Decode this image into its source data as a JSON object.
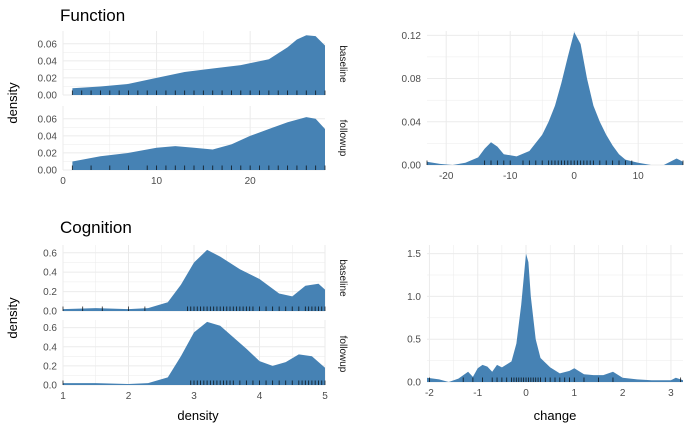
{
  "colors": {
    "fill": "#4682b4",
    "grid": "#ebebeb",
    "rug": "#000000"
  },
  "chart_data": [
    {
      "type": "area",
      "title": "Function",
      "xlabel": "",
      "ylabel": "density",
      "xlim": [
        0,
        28
      ],
      "xticks": [
        0,
        10,
        20
      ],
      "ylim": [
        0,
        0.075
      ],
      "yticks": [
        0.0,
        0.02,
        0.04,
        0.06
      ],
      "yticklabels": [
        "0.00",
        "0.02",
        "0.04",
        "0.06"
      ],
      "series": [
        {
          "name": "baseline",
          "x": [
            1,
            4,
            7,
            10,
            13,
            16,
            19,
            22,
            24,
            25,
            26,
            27,
            28
          ],
          "values": [
            0.008,
            0.01,
            0.013,
            0.02,
            0.027,
            0.031,
            0.035,
            0.042,
            0.056,
            0.065,
            0.07,
            0.069,
            0.058
          ],
          "rug": [
            1,
            2,
            3,
            4,
            5,
            6,
            7,
            8,
            9,
            10,
            11,
            12,
            13,
            14,
            15,
            16,
            17,
            18,
            19,
            20,
            21,
            22,
            23,
            24,
            25,
            26,
            27,
            28
          ]
        },
        {
          "name": "followup",
          "x": [
            1,
            4,
            7,
            10,
            12,
            14,
            16,
            18,
            20,
            22,
            24,
            26,
            27,
            28
          ],
          "values": [
            0.01,
            0.016,
            0.02,
            0.026,
            0.028,
            0.026,
            0.024,
            0.03,
            0.04,
            0.048,
            0.056,
            0.062,
            0.06,
            0.048
          ],
          "rug": [
            1,
            3,
            5,
            7,
            9,
            10,
            11,
            12,
            13,
            14,
            15,
            16,
            17,
            18,
            19,
            20,
            21,
            22,
            23,
            24,
            25,
            26,
            27,
            28
          ]
        }
      ]
    },
    {
      "type": "area",
      "title": "",
      "xlabel": "",
      "ylabel": "",
      "xlim": [
        -23,
        17
      ],
      "xticks": [
        -20,
        -10,
        0,
        10
      ],
      "ylim": [
        0,
        0.124
      ],
      "yticks": [
        0.0,
        0.04,
        0.08,
        0.12
      ],
      "yticklabels": [
        "0.00",
        "0.04",
        "0.08",
        "0.12"
      ],
      "series": [
        {
          "x": [
            -23,
            -21,
            -19,
            -17,
            -15,
            -14,
            -13,
            -12,
            -11,
            -9,
            -7,
            -5,
            -4,
            -3,
            -2,
            -1,
            0,
            1,
            2,
            3,
            4,
            5,
            6,
            7,
            8,
            10,
            12,
            14,
            15,
            16,
            17
          ],
          "values": [
            0.003,
            0.001,
            0.0,
            0.002,
            0.007,
            0.015,
            0.021,
            0.017,
            0.01,
            0.008,
            0.013,
            0.028,
            0.04,
            0.055,
            0.076,
            0.1,
            0.123,
            0.112,
            0.08,
            0.055,
            0.04,
            0.028,
            0.018,
            0.01,
            0.005,
            0.002,
            0.0,
            0.0,
            0.003,
            0.006,
            0.003
          ],
          "rug": [
            -23,
            -14,
            -13,
            -12,
            -11,
            -10,
            -8,
            -7,
            -6,
            -5,
            -4,
            -3.5,
            -3,
            -2.5,
            -2,
            -1.5,
            -1,
            -0.5,
            0,
            0.5,
            1,
            1.5,
            2,
            2.5,
            3,
            4,
            5,
            6,
            7,
            8,
            9,
            17
          ]
        }
      ]
    },
    {
      "type": "area",
      "title": "Cognition",
      "xlabel": "density",
      "ylabel": "density",
      "xlim": [
        1,
        5
      ],
      "xticks": [
        1,
        2,
        3,
        4,
        5
      ],
      "ylim": [
        0,
        0.68
      ],
      "yticks": [
        0.0,
        0.2,
        0.4,
        0.6
      ],
      "yticklabels": [
        "0.0",
        "0.2",
        "0.4",
        "0.6"
      ],
      "series": [
        {
          "name": "baseline",
          "x": [
            1,
            1.5,
            2,
            2.3,
            2.6,
            2.8,
            3.0,
            3.2,
            3.4,
            3.7,
            4.0,
            4.3,
            4.5,
            4.7,
            4.9,
            5.0
          ],
          "values": [
            0.02,
            0.03,
            0.02,
            0.03,
            0.09,
            0.27,
            0.5,
            0.63,
            0.56,
            0.43,
            0.33,
            0.18,
            0.15,
            0.26,
            0.28,
            0.22
          ],
          "rug": [
            1.0,
            1.3,
            1.6,
            2.0,
            2.25,
            2.9,
            2.95,
            3.0,
            3.05,
            3.1,
            3.15,
            3.2,
            3.25,
            3.3,
            3.35,
            3.4,
            3.45,
            3.5,
            3.55,
            3.6,
            3.65,
            3.7,
            3.75,
            3.8,
            3.85,
            3.9,
            4.0,
            4.1,
            4.2,
            4.3,
            4.4,
            4.5,
            4.6,
            4.7,
            4.75,
            4.8,
            4.85,
            4.9,
            4.95,
            5.0
          ]
        },
        {
          "name": "followup",
          "x": [
            1,
            1.5,
            2,
            2.3,
            2.6,
            2.8,
            3.0,
            3.2,
            3.4,
            3.6,
            3.8,
            4.0,
            4.2,
            4.4,
            4.6,
            4.8,
            5.0
          ],
          "values": [
            0.02,
            0.02,
            0.01,
            0.02,
            0.08,
            0.3,
            0.55,
            0.66,
            0.62,
            0.5,
            0.38,
            0.25,
            0.2,
            0.24,
            0.32,
            0.3,
            0.18
          ],
          "rug": [
            1.0,
            2.95,
            3.0,
            3.05,
            3.1,
            3.15,
            3.2,
            3.25,
            3.3,
            3.35,
            3.4,
            3.45,
            3.5,
            3.55,
            3.6,
            3.7,
            3.8,
            3.9,
            4.0,
            4.1,
            4.2,
            4.3,
            4.4,
            4.5,
            4.6,
            4.65,
            4.7,
            4.75,
            4.8,
            4.85,
            4.9,
            4.95,
            5.0
          ]
        }
      ]
    },
    {
      "type": "area",
      "title": "",
      "xlabel": "change",
      "ylabel": "",
      "xlim": [
        -2.05,
        3.25
      ],
      "xticks": [
        -2,
        -1,
        0,
        1,
        2,
        3
      ],
      "ylim": [
        0,
        1.6
      ],
      "yticks": [
        0.0,
        0.5,
        1.0,
        1.5
      ],
      "yticklabels": [
        "0.0",
        "0.5",
        "1.0",
        "1.5"
      ],
      "series": [
        {
          "x": [
            -2.05,
            -1.8,
            -1.6,
            -1.4,
            -1.2,
            -1.1,
            -1.0,
            -0.9,
            -0.8,
            -0.7,
            -0.6,
            -0.5,
            -0.3,
            -0.2,
            -0.1,
            0.0,
            0.05,
            0.1,
            0.2,
            0.3,
            0.5,
            0.7,
            0.9,
            1.0,
            1.2,
            1.4,
            1.6,
            1.8,
            2.0,
            2.3,
            2.6,
            3.0,
            3.1,
            3.2,
            3.25
          ],
          "values": [
            0.05,
            0.03,
            0.0,
            0.04,
            0.12,
            0.06,
            0.16,
            0.2,
            0.18,
            0.12,
            0.2,
            0.17,
            0.24,
            0.45,
            0.9,
            1.5,
            1.4,
            1.0,
            0.5,
            0.28,
            0.17,
            0.1,
            0.13,
            0.16,
            0.09,
            0.08,
            0.08,
            0.12,
            0.05,
            0.03,
            0.02,
            0.02,
            0.05,
            0.03,
            0.02
          ],
          "rug": [
            -2.0,
            -1.3,
            -1.1,
            -0.9,
            -0.7,
            -0.6,
            -0.5,
            -0.4,
            -0.3,
            -0.25,
            -0.2,
            -0.15,
            -0.1,
            -0.05,
            0.0,
            0.05,
            0.1,
            0.15,
            0.2,
            0.25,
            0.3,
            0.4,
            0.5,
            0.6,
            0.7,
            0.8,
            0.9,
            1.0,
            1.2,
            1.5,
            1.8,
            3.2
          ]
        }
      ]
    }
  ]
}
